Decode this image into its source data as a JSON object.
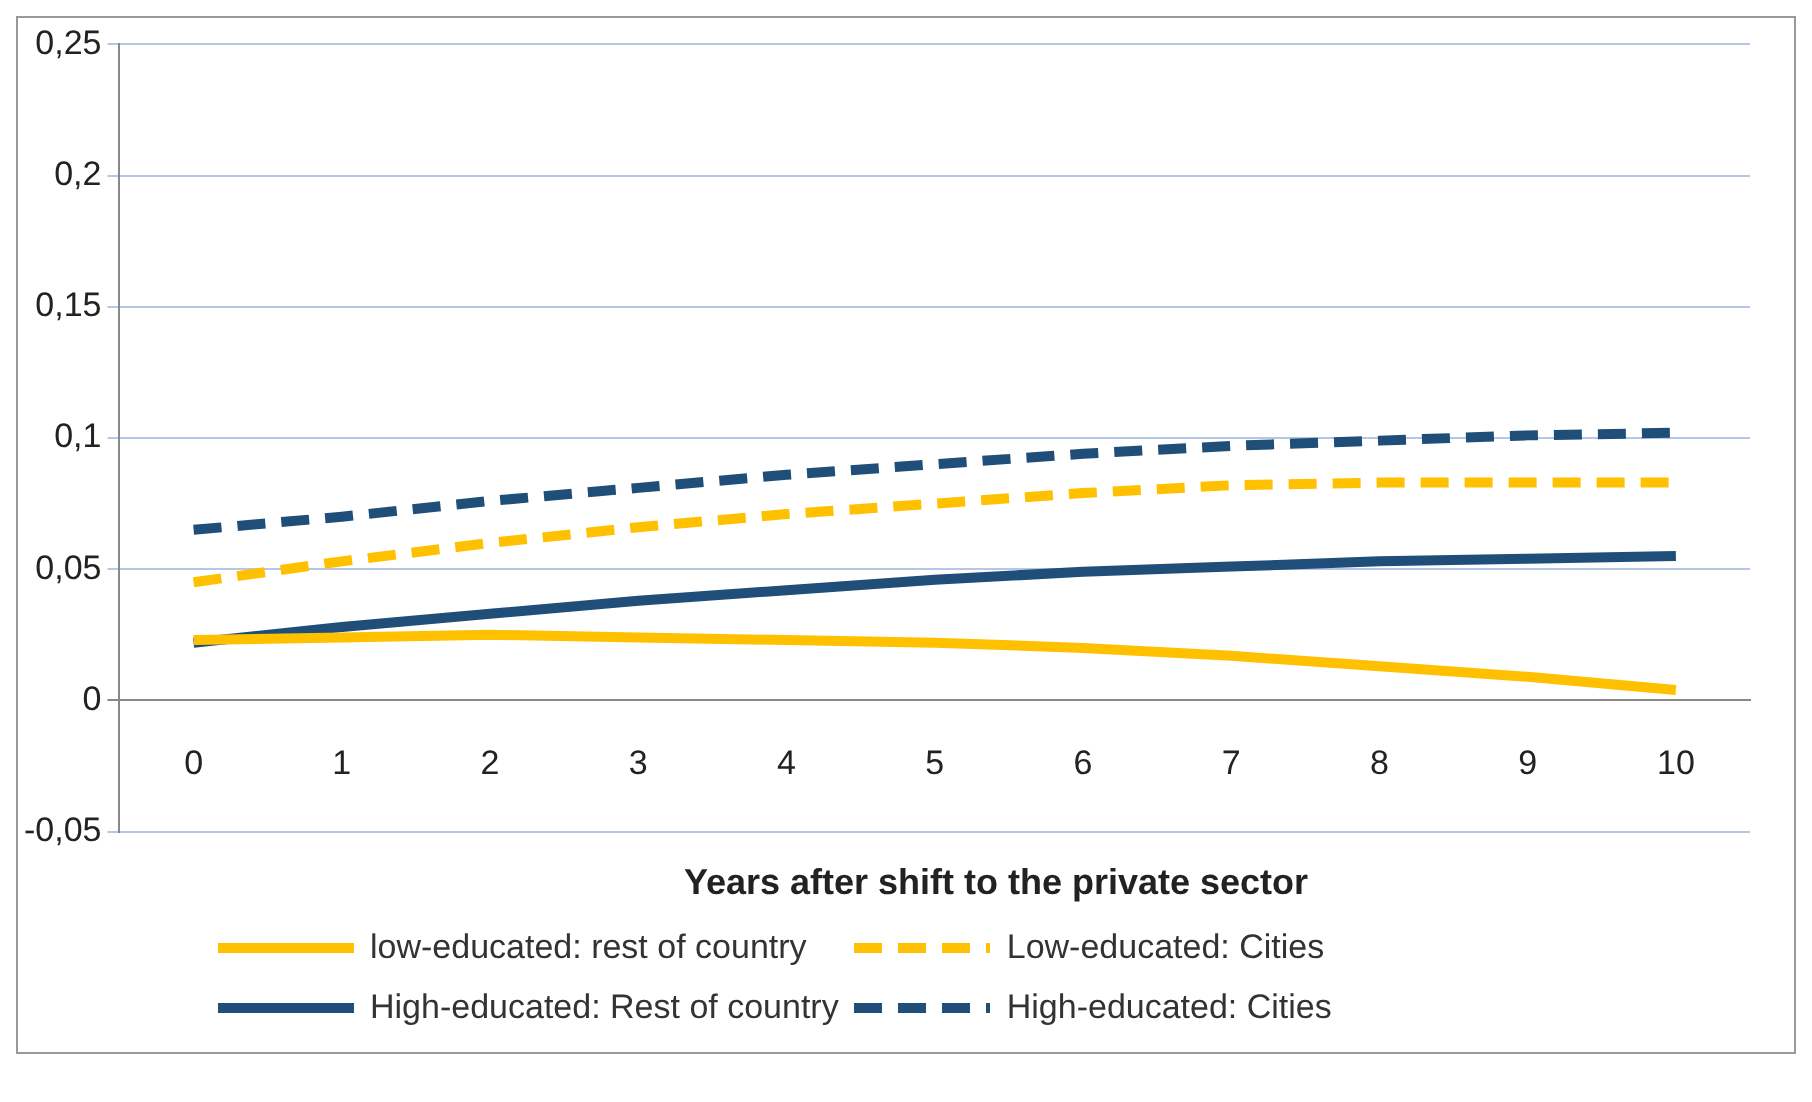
{
  "chart_data": {
    "type": "line",
    "xlabel": "Years after shift to the private sector",
    "categories": [
      "0",
      "1",
      "2",
      "3",
      "4",
      "5",
      "6",
      "7",
      "8",
      "9",
      "10"
    ],
    "series": [
      {
        "name": "low-educated: rest of country",
        "color": "#ffc000",
        "line_style": "solid",
        "values": [
          0.023,
          0.024,
          0.025,
          0.024,
          0.023,
          0.022,
          0.02,
          0.017,
          0.013,
          0.009,
          0.004
        ]
      },
      {
        "name": "Low-educated: Cities",
        "color": "#ffc000",
        "line_style": "dashed",
        "values": [
          0.045,
          0.053,
          0.06,
          0.066,
          0.071,
          0.075,
          0.079,
          0.082,
          0.083,
          0.083,
          0.083
        ]
      },
      {
        "name": "High-educated: Rest of country",
        "color": "#1f4e79",
        "line_style": "solid",
        "values": [
          0.022,
          0.028,
          0.033,
          0.038,
          0.042,
          0.046,
          0.049,
          0.051,
          0.053,
          0.054,
          0.055
        ]
      },
      {
        "name": "High-educated: Cities",
        "color": "#1f4e79",
        "line_style": "dashed",
        "values": [
          0.065,
          0.07,
          0.076,
          0.081,
          0.086,
          0.09,
          0.094,
          0.097,
          0.099,
          0.101,
          0.102
        ]
      }
    ],
    "ylim": [
      -0.05,
      0.25
    ],
    "yticks": [
      {
        "value": -0.05,
        "label": "-0,05"
      },
      {
        "value": 0,
        "label": "0"
      },
      {
        "value": 0.05,
        "label": "0,05"
      },
      {
        "value": 0.1,
        "label": "0,1"
      },
      {
        "value": 0.15,
        "label": "0,15"
      },
      {
        "value": 0.2,
        "label": "0,2"
      },
      {
        "value": 0.25,
        "label": "0,25"
      }
    ],
    "grid": "y",
    "legend": "bottom",
    "marker": "none"
  }
}
